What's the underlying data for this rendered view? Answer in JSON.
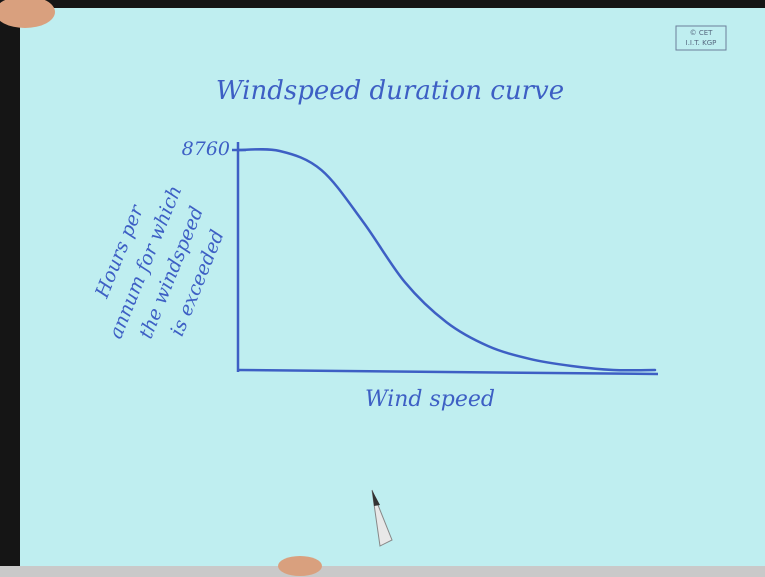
{
  "chart_data": {
    "type": "line",
    "title": "Windspeed duration curve",
    "xlabel": "Wind speed",
    "ylabel": [
      "Hours per",
      "annum for which",
      "the windspeed",
      "is exceeded"
    ],
    "annotations": [
      "© CET",
      "I.I.T. KGP"
    ],
    "x": [
      0,
      1,
      2,
      3,
      4,
      5,
      6,
      7,
      8,
      9,
      10
    ],
    "series": [
      {
        "color": "#3d5fc4",
        "values": [
          8760,
          8720,
          7960,
          5900,
          3500,
          1900,
          950,
          440,
          160,
          0,
          0
        ]
      }
    ],
    "xlim": [
      0,
      10
    ],
    "ylim": [
      0,
      8760
    ],
    "yticks": [
      8760
    ]
  }
}
